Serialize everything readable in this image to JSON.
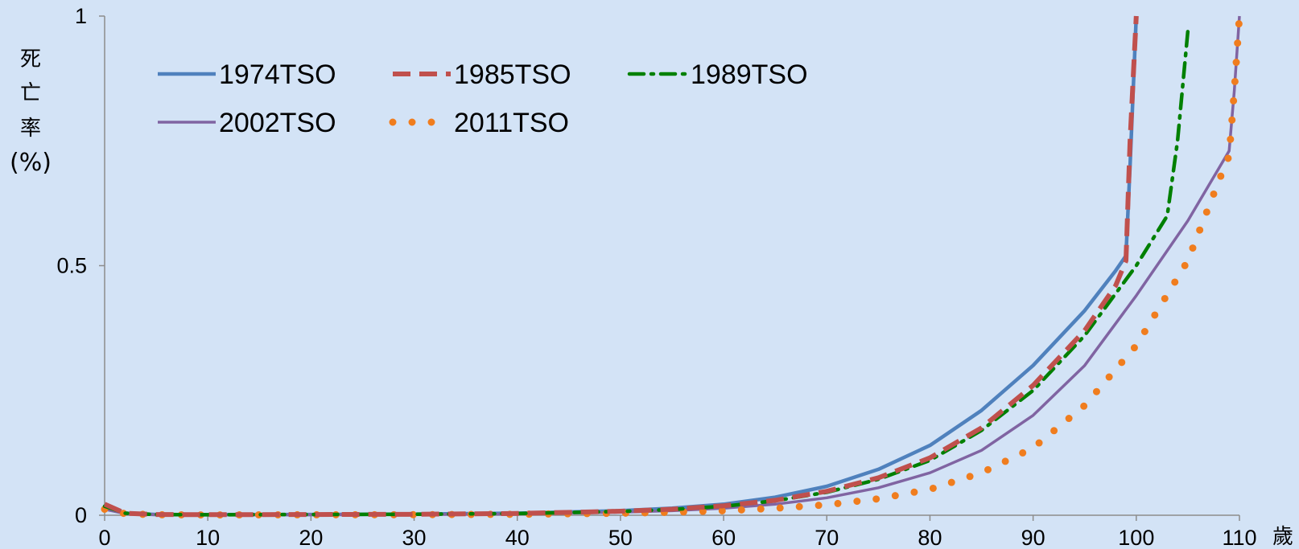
{
  "chart_data": {
    "type": "line",
    "title": "",
    "ylabel_chars": [
      "死",
      "亡",
      "率",
      "(%)"
    ],
    "xlabel": "歲",
    "xlim": [
      0,
      110
    ],
    "ylim": [
      0,
      1
    ],
    "x_ticks": [
      "0",
      "10",
      "20",
      "30",
      "40",
      "50",
      "60",
      "70",
      "80",
      "90",
      "100",
      "110"
    ],
    "y_ticks": [
      "0",
      "0.5",
      "1"
    ],
    "grid": false,
    "legend_position": "top-left",
    "series": [
      {
        "name": "1974TSO",
        "color": "#4f81bd",
        "style": "solid",
        "points": [
          [
            0,
            0.02
          ],
          [
            2,
            0.004
          ],
          [
            5,
            0.0015
          ],
          [
            10,
            0.0012
          ],
          [
            20,
            0.0015
          ],
          [
            30,
            0.0022
          ],
          [
            40,
            0.004
          ],
          [
            50,
            0.009
          ],
          [
            55,
            0.014
          ],
          [
            60,
            0.022
          ],
          [
            65,
            0.036
          ],
          [
            70,
            0.058
          ],
          [
            75,
            0.092
          ],
          [
            80,
            0.14
          ],
          [
            85,
            0.21
          ],
          [
            90,
            0.3
          ],
          [
            95,
            0.41
          ],
          [
            98,
            0.49
          ],
          [
            99,
            0.52
          ],
          [
            99.4,
            0.7
          ],
          [
            100,
            1.0
          ]
        ]
      },
      {
        "name": "1985TSO",
        "color": "#c0504d",
        "style": "dashed",
        "points": [
          [
            0,
            0.022
          ],
          [
            2,
            0.004
          ],
          [
            5,
            0.0015
          ],
          [
            10,
            0.0011
          ],
          [
            20,
            0.0014
          ],
          [
            30,
            0.002
          ],
          [
            40,
            0.0035
          ],
          [
            50,
            0.008
          ],
          [
            55,
            0.012
          ],
          [
            60,
            0.019
          ],
          [
            65,
            0.03
          ],
          [
            70,
            0.048
          ],
          [
            75,
            0.075
          ],
          [
            80,
            0.115
          ],
          [
            85,
            0.175
          ],
          [
            90,
            0.26
          ],
          [
            95,
            0.37
          ],
          [
            98,
            0.46
          ],
          [
            99,
            0.51
          ],
          [
            99.4,
            0.75
          ],
          [
            100,
            1.0
          ]
        ]
      },
      {
        "name": "1989TSO",
        "color": "#008000",
        "style": "dash-dot",
        "points": [
          [
            0,
            0.018
          ],
          [
            2,
            0.004
          ],
          [
            5,
            0.0014
          ],
          [
            10,
            0.001
          ],
          [
            20,
            0.0014
          ],
          [
            30,
            0.002
          ],
          [
            40,
            0.0034
          ],
          [
            50,
            0.0075
          ],
          [
            55,
            0.0115
          ],
          [
            60,
            0.018
          ],
          [
            65,
            0.029
          ],
          [
            70,
            0.046
          ],
          [
            75,
            0.072
          ],
          [
            80,
            0.11
          ],
          [
            85,
            0.17
          ],
          [
            90,
            0.25
          ],
          [
            95,
            0.36
          ],
          [
            100,
            0.5
          ],
          [
            103,
            0.6
          ],
          [
            104,
            0.75
          ],
          [
            105,
            0.97
          ]
        ]
      },
      {
        "name": "2002TSO",
        "color": "#8064a2",
        "style": "solid",
        "points": [
          [
            0,
            0.012
          ],
          [
            2,
            0.003
          ],
          [
            5,
            0.001
          ],
          [
            10,
            0.0008
          ],
          [
            20,
            0.001
          ],
          [
            30,
            0.0015
          ],
          [
            40,
            0.0027
          ],
          [
            50,
            0.006
          ],
          [
            55,
            0.009
          ],
          [
            60,
            0.014
          ],
          [
            65,
            0.022
          ],
          [
            70,
            0.035
          ],
          [
            75,
            0.055
          ],
          [
            80,
            0.085
          ],
          [
            85,
            0.13
          ],
          [
            90,
            0.2
          ],
          [
            95,
            0.3
          ],
          [
            100,
            0.44
          ],
          [
            105,
            0.59
          ],
          [
            109,
            0.73
          ],
          [
            109.5,
            0.85
          ],
          [
            110,
            1.0
          ]
        ]
      },
      {
        "name": "2011TSO",
        "color": "#f07d1e",
        "style": "dotted",
        "points": [
          [
            0,
            0.012
          ],
          [
            2,
            0.003
          ],
          [
            5,
            0.001
          ],
          [
            10,
            0.0007
          ],
          [
            20,
            0.0009
          ],
          [
            30,
            0.0012
          ],
          [
            40,
            0.002
          ],
          [
            50,
            0.004
          ],
          [
            55,
            0.006
          ],
          [
            60,
            0.009
          ],
          [
            65,
            0.014
          ],
          [
            70,
            0.021
          ],
          [
            75,
            0.033
          ],
          [
            80,
            0.052
          ],
          [
            85,
            0.085
          ],
          [
            90,
            0.135
          ],
          [
            95,
            0.22
          ],
          [
            100,
            0.34
          ],
          [
            105,
            0.51
          ],
          [
            108,
            0.67
          ],
          [
            109,
            0.72
          ],
          [
            109.5,
            0.85
          ],
          [
            110,
            1.0
          ]
        ]
      }
    ]
  }
}
